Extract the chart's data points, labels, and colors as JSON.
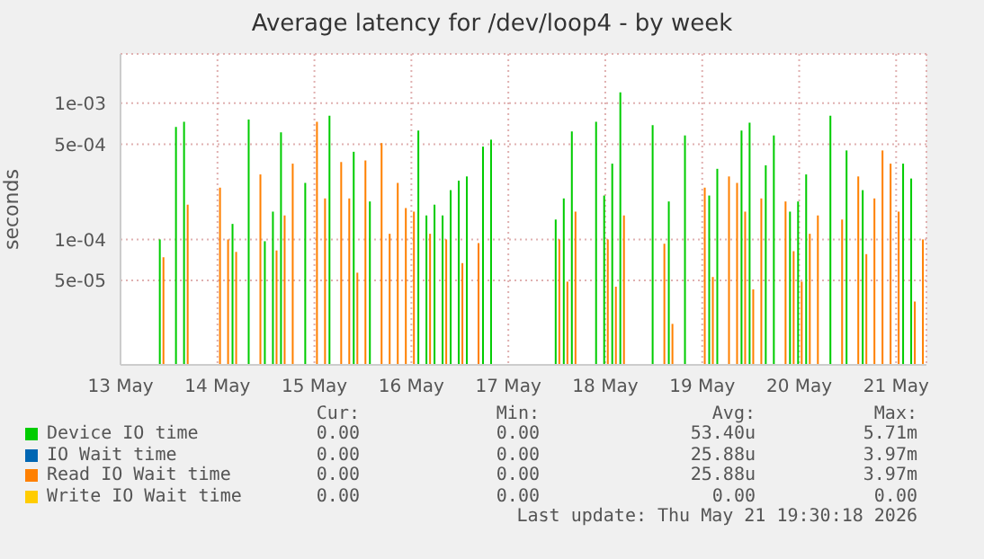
{
  "chart_data": {
    "type": "bar",
    "title": "Average latency for /dev/loop4 - by week",
    "ylabel": "seconds",
    "log": true,
    "grid": true,
    "legend": "bottom",
    "ylim": [
      1.2e-05,
      0.0023
    ],
    "yticks": [
      {
        "value": 5e-05,
        "label": "5e-05"
      },
      {
        "value": 0.0001,
        "label": "1e-04"
      },
      {
        "value": 0.0005,
        "label": "5e-04"
      },
      {
        "value": 0.001,
        "label": "1e-03"
      }
    ],
    "xlim": [
      "2026-05-13T12:00",
      "2026-05-21T19:30"
    ],
    "xticks": [
      {
        "value": "2026-05-13T12:00",
        "label": "13 May"
      },
      {
        "value": "2026-05-14T12:00",
        "label": "14 May"
      },
      {
        "value": "2026-05-15T12:00",
        "label": "15 May"
      },
      {
        "value": "2026-05-16T12:00",
        "label": "16 May"
      },
      {
        "value": "2026-05-17T12:00",
        "label": "17 May"
      },
      {
        "value": "2026-05-18T12:00",
        "label": "18 May"
      },
      {
        "value": "2026-05-19T12:00",
        "label": "19 May"
      },
      {
        "value": "2026-05-20T12:00",
        "label": "20 May"
      },
      {
        "value": "2026-05-21T12:00",
        "label": "21 May"
      }
    ],
    "x": [
      "2026-05-13T22:30",
      "2026-05-14T02:30",
      "2026-05-14T04:30",
      "2026-05-14T12:30",
      "2026-05-14T14:30",
      "2026-05-14T16:30",
      "2026-05-14T20:30",
      "2026-05-14T22:30",
      "2026-05-15T00:30",
      "2026-05-15T02:30",
      "2026-05-15T04:30",
      "2026-05-15T06:30",
      "2026-05-15T10:30",
      "2026-05-15T12:30",
      "2026-05-15T14:30",
      "2026-05-15T16:30",
      "2026-05-15T18:30",
      "2026-05-15T20:30",
      "2026-05-15T22:30",
      "2026-05-16T00:30",
      "2026-05-16T02:30",
      "2026-05-16T04:30",
      "2026-05-16T06:30",
      "2026-05-16T08:30",
      "2026-05-16T10:30",
      "2026-05-16T12:30",
      "2026-05-16T14:30",
      "2026-05-16T16:30",
      "2026-05-16T18:30",
      "2026-05-16T20:30",
      "2026-05-16T22:30",
      "2026-05-17T00:30",
      "2026-05-17T02:30",
      "2026-05-17T04:30",
      "2026-05-17T06:30",
      "2026-05-17T08:30",
      "2026-05-18T00:30",
      "2026-05-18T02:30",
      "2026-05-18T04:30",
      "2026-05-18T10:30",
      "2026-05-18T12:30",
      "2026-05-18T14:30",
      "2026-05-18T16:30",
      "2026-05-19T00:30",
      "2026-05-19T02:30",
      "2026-05-19T04:30",
      "2026-05-19T08:30",
      "2026-05-19T12:30",
      "2026-05-19T14:30",
      "2026-05-19T16:30",
      "2026-05-19T18:30",
      "2026-05-19T20:30",
      "2026-05-19T22:30",
      "2026-05-20T00:30",
      "2026-05-20T02:30",
      "2026-05-20T04:30",
      "2026-05-20T06:30",
      "2026-05-20T08:30",
      "2026-05-20T10:30",
      "2026-05-20T12:30",
      "2026-05-20T14:30",
      "2026-05-20T16:30",
      "2026-05-20T20:30",
      "2026-05-20T22:30",
      "2026-05-21T00:30",
      "2026-05-21T02:30",
      "2026-05-21T04:30",
      "2026-05-21T06:30",
      "2026-05-21T08:30",
      "2026-05-21T10:30",
      "2026-05-21T12:30",
      "2026-05-21T14:30",
      "2026-05-21T16:30",
      "2026-05-21T18:30"
    ],
    "series": [
      {
        "name": "Device IO time",
        "color": "#00cc00",
        "values": [
          0.0001,
          0.00067,
          0.00073,
          null,
          null,
          0.00013,
          0.00076,
          null,
          9.7e-05,
          0.00016,
          0.00061,
          null,
          0.00026,
          null,
          null,
          0.00081,
          null,
          null,
          0.00044,
          null,
          0.00019,
          null,
          null,
          null,
          null,
          null,
          0.00063,
          0.00015,
          0.00018,
          0.00015,
          0.00023,
          0.00027,
          0.00029,
          null,
          0.00048,
          0.00054,
          0.00014,
          0.0002,
          0.00062,
          0.00073,
          0.00021,
          0.00036,
          0.0012,
          0.00069,
          null,
          0.00019,
          0.00058,
          null,
          0.00021,
          0.00033,
          null,
          null,
          0.00063,
          0.00072,
          null,
          0.00035,
          0.00058,
          null,
          0.00016,
          0.00019,
          0.0003,
          null,
          0.00081,
          null,
          0.00045,
          null,
          0.00023,
          null,
          null,
          null,
          null,
          0.00036,
          0.00028,
          null
        ]
      },
      {
        "name": "IO Wait time",
        "color": "#0066b3",
        "values": [
          null,
          null,
          null,
          null,
          null,
          null,
          null,
          null,
          null,
          null,
          null,
          null,
          null,
          null,
          null,
          null,
          null,
          null,
          null,
          null,
          null,
          null,
          null,
          null,
          null,
          null,
          null,
          null,
          null,
          null,
          null,
          null,
          null,
          null,
          null,
          null,
          null,
          null,
          null,
          null,
          null,
          null,
          null,
          null,
          null,
          null,
          null,
          null,
          null,
          null,
          null,
          null,
          null,
          null,
          null,
          null,
          null,
          null,
          null,
          null,
          null,
          null,
          null,
          null,
          null,
          null,
          null,
          null,
          null,
          null,
          null,
          null,
          null,
          null
        ]
      },
      {
        "name": "Read IO Wait time",
        "color": "#ff8000",
        "values": [
          7.4e-05,
          null,
          0.00018,
          0.00024,
          0.0001,
          8.1e-05,
          null,
          0.0003,
          null,
          8.3e-05,
          0.00015,
          0.00036,
          null,
          0.00073,
          0.0002,
          null,
          0.00037,
          0.0002,
          5.7e-05,
          0.00038,
          null,
          0.00051,
          0.00011,
          0.00026,
          0.00017,
          0.00016,
          null,
          0.00011,
          null,
          0.0001,
          null,
          6.7e-05,
          null,
          9.4e-05,
          null,
          null,
          0.0001,
          4.9e-05,
          0.00016,
          null,
          0.0001,
          4.5e-05,
          0.00015,
          null,
          9.3e-05,
          2.4e-05,
          null,
          0.00024,
          5.3e-05,
          null,
          0.00029,
          0.00026,
          0.00016,
          4.3e-05,
          0.0002,
          null,
          null,
          0.00019,
          8.2e-05,
          4.9e-05,
          0.00011,
          0.00015,
          null,
          0.00014,
          null,
          0.00029,
          7.8e-05,
          0.0002,
          0.00045,
          0.00036,
          0.00016,
          null,
          3.5e-05,
          0.0001
        ]
      },
      {
        "name": "Write IO Wait time",
        "color": "#ffcc00",
        "values": [
          null,
          null,
          null,
          null,
          null,
          null,
          null,
          null,
          null,
          null,
          null,
          null,
          null,
          null,
          null,
          null,
          null,
          null,
          null,
          null,
          null,
          null,
          null,
          null,
          null,
          null,
          null,
          null,
          null,
          null,
          null,
          null,
          null,
          null,
          null,
          null,
          null,
          null,
          null,
          null,
          null,
          null,
          null,
          null,
          null,
          null,
          null,
          null,
          null,
          null,
          null,
          null,
          null,
          null,
          null,
          null,
          null,
          null,
          null,
          null,
          null,
          null,
          null,
          null,
          null,
          null,
          null,
          null,
          null,
          null,
          null,
          null,
          null,
          null
        ]
      }
    ],
    "annotations": [
      "Cur:",
      "Min:",
      "Avg:",
      "Max:",
      "0.00",
      "0.00",
      "53.40u",
      "5.71m",
      "0.00",
      "0.00",
      "25.88u",
      "3.97m",
      "0.00",
      "0.00",
      "25.88u",
      "3.97m",
      "0.00",
      "0.00",
      "0.00",
      "0.00",
      "Last update: Thu May 21 19:30:18 2026"
    ]
  }
}
